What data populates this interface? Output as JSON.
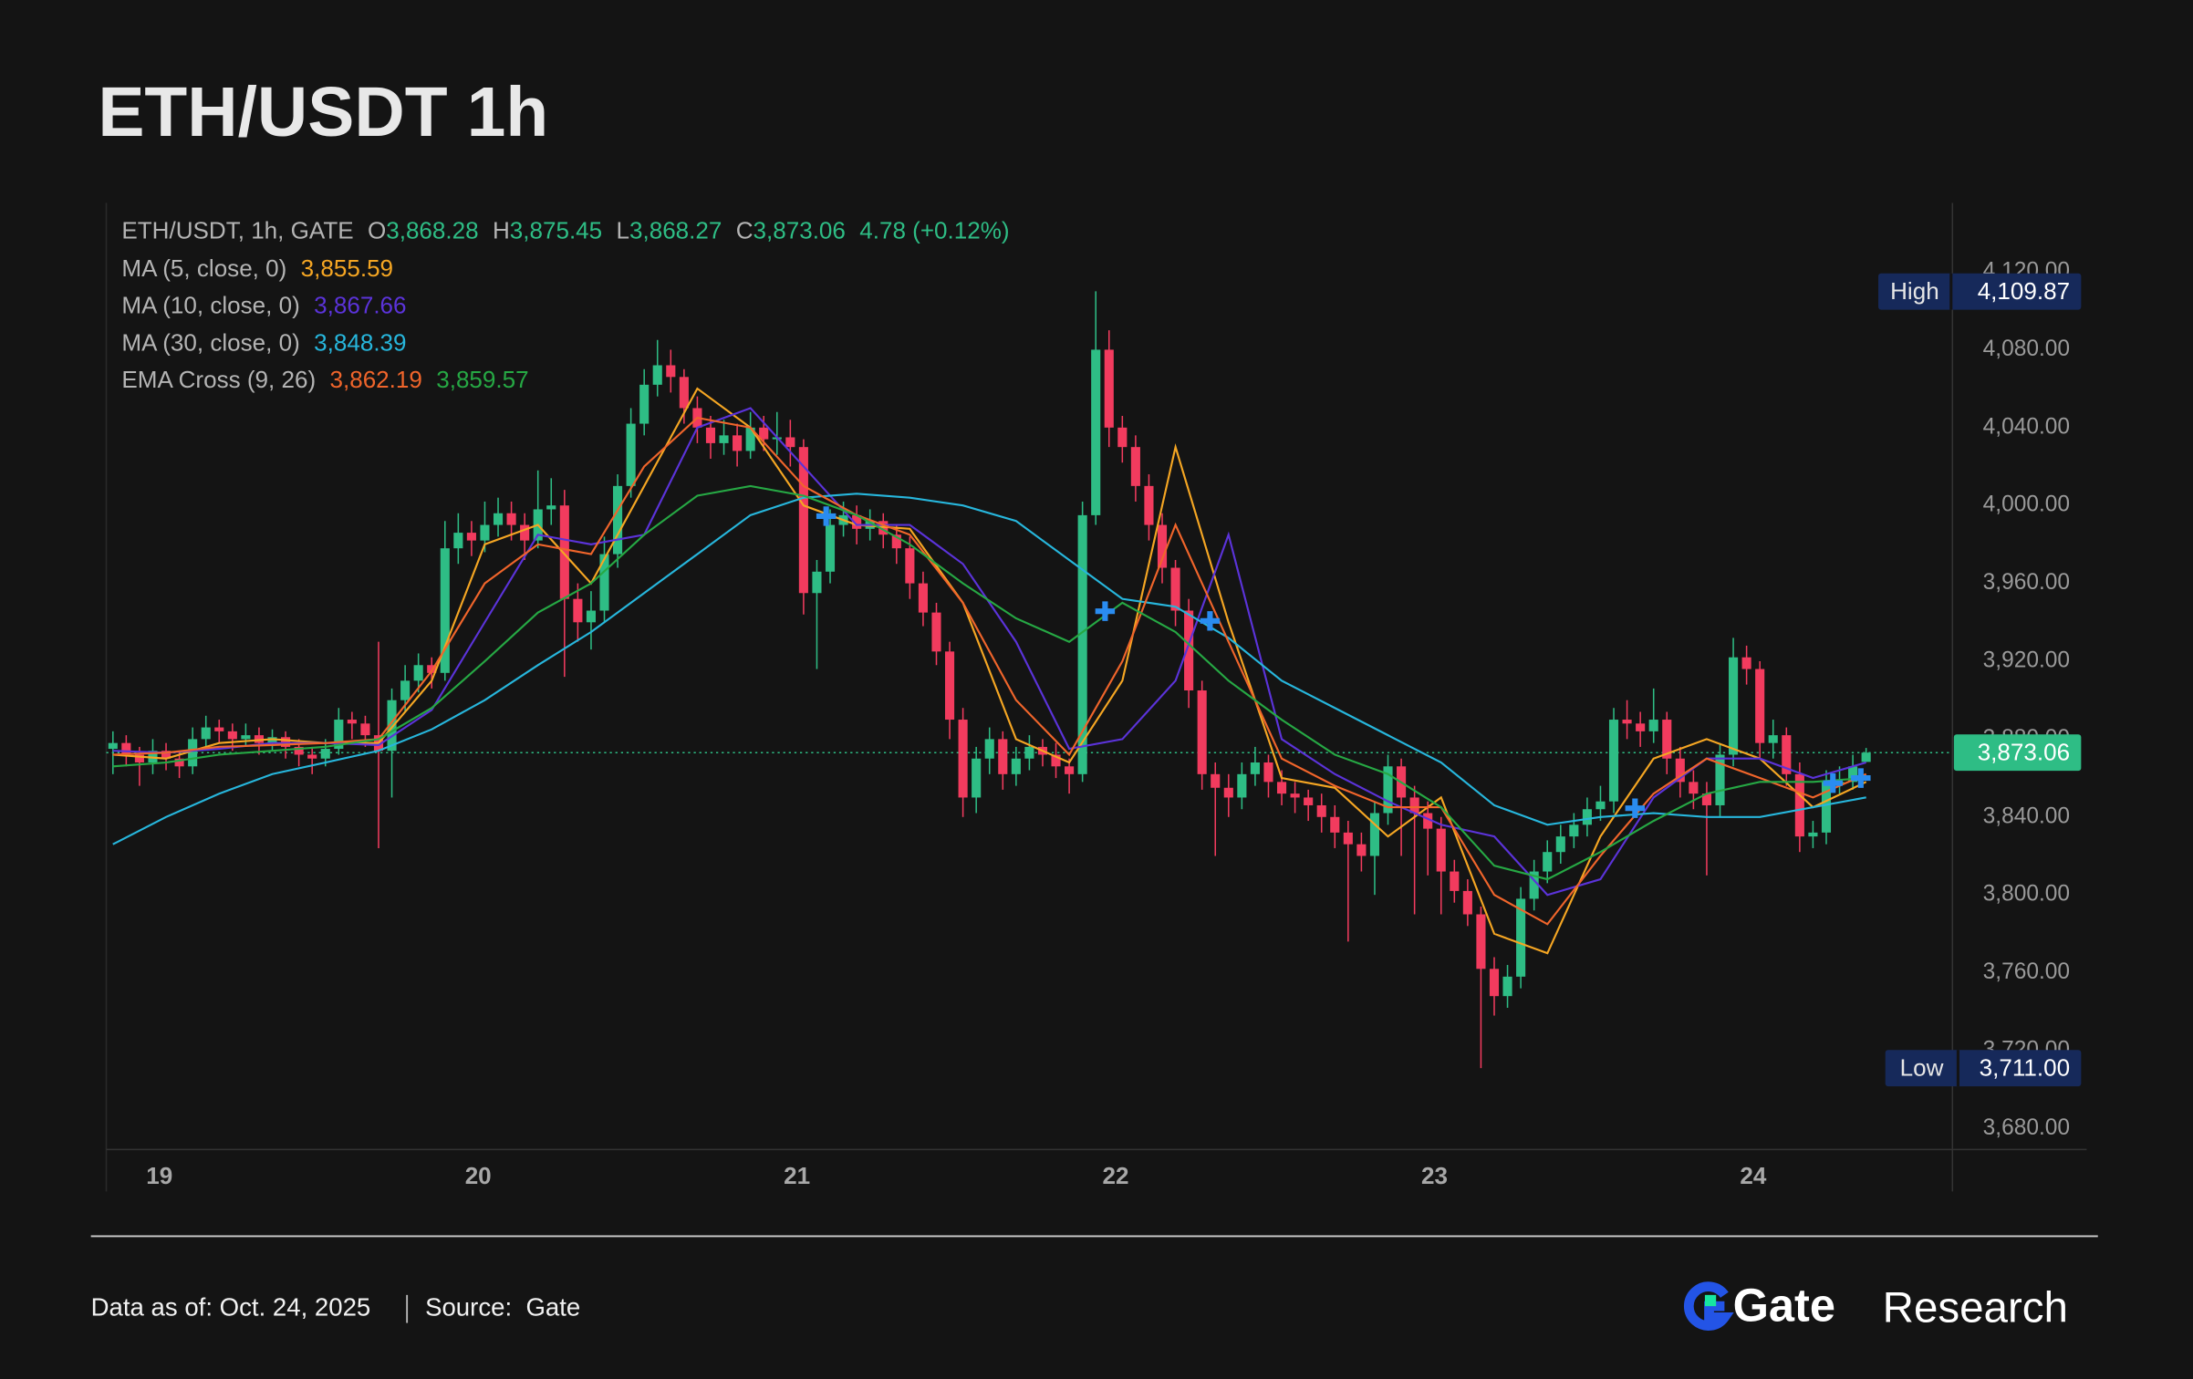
{
  "chart_data": {
    "type": "candlestick",
    "title": "ETH/USDT 1h",
    "up_color": "#2ebd85",
    "down_color": "#f23b5e",
    "xlim": [
      -0.5,
      138.5
    ],
    "xticks": [
      {
        "value": 3.5,
        "label": "19"
      },
      {
        "value": 27.5,
        "label": "20"
      },
      {
        "value": 51.5,
        "label": "21"
      },
      {
        "value": 75.5,
        "label": "22"
      },
      {
        "value": 99.5,
        "label": "23"
      },
      {
        "value": 123.5,
        "label": "24"
      }
    ],
    "ylim": [
      3669.2,
      4155.4
    ],
    "yticks": [
      {
        "value": 3680,
        "label": "3,680.00"
      },
      {
        "value": 3720,
        "label": "3,720.00"
      },
      {
        "value": 3760,
        "label": "3,760.00"
      },
      {
        "value": 3800,
        "label": "3,800.00"
      },
      {
        "value": 3840,
        "label": "3,840.00"
      },
      {
        "value": 3880,
        "label": "3,880.00"
      },
      {
        "value": 3920,
        "label": "3,920.00"
      },
      {
        "value": 3960,
        "label": "3,960.00"
      },
      {
        "value": 4000,
        "label": "4,000.00"
      },
      {
        "value": 4040,
        "label": "4,040.00"
      },
      {
        "value": 4080,
        "label": "4,080.00"
      },
      {
        "value": 4120,
        "label": "4,120.00"
      }
    ],
    "grid": false,
    "ohlc": [
      [
        3875,
        3884,
        3862,
        3878
      ],
      [
        3878,
        3882,
        3866,
        3872
      ],
      [
        3872,
        3876,
        3856,
        3868
      ],
      [
        3868,
        3880,
        3862,
        3874
      ],
      [
        3874,
        3878,
        3864,
        3870
      ],
      [
        3870,
        3874,
        3860,
        3866
      ],
      [
        3866,
        3886,
        3862,
        3880
      ],
      [
        3880,
        3892,
        3876,
        3886
      ],
      [
        3886,
        3890,
        3878,
        3884
      ],
      [
        3884,
        3888,
        3874,
        3880
      ],
      [
        3880,
        3888,
        3876,
        3882
      ],
      [
        3882,
        3886,
        3872,
        3878
      ],
      [
        3878,
        3885,
        3874,
        3881
      ],
      [
        3881,
        3884,
        3870,
        3876
      ],
      [
        3876,
        3880,
        3866,
        3872
      ],
      [
        3872,
        3876,
        3862,
        3870
      ],
      [
        3870,
        3880,
        3866,
        3875
      ],
      [
        3875,
        3896,
        3872,
        3890
      ],
      [
        3890,
        3894,
        3880,
        3888
      ],
      [
        3888,
        3892,
        3876,
        3882
      ],
      [
        3882,
        3930,
        3824,
        3874
      ],
      [
        3874,
        3906,
        3850,
        3900
      ],
      [
        3900,
        3918,
        3894,
        3910
      ],
      [
        3910,
        3924,
        3904,
        3918
      ],
      [
        3918,
        3922,
        3906,
        3914
      ],
      [
        3914,
        3992,
        3910,
        3978
      ],
      [
        3978,
        3996,
        3970,
        3986
      ],
      [
        3986,
        3992,
        3974,
        3982
      ],
      [
        3982,
        4002,
        3976,
        3990
      ],
      [
        3990,
        4004,
        3984,
        3996
      ],
      [
        3996,
        4002,
        3982,
        3990
      ],
      [
        3990,
        3996,
        3972,
        3982
      ],
      [
        3982,
        4018,
        3978,
        3998
      ],
      [
        3998,
        4014,
        3990,
        4000
      ],
      [
        4000,
        4008,
        3912,
        3952
      ],
      [
        3952,
        3960,
        3930,
        3940
      ],
      [
        3940,
        3956,
        3926,
        3946
      ],
      [
        3946,
        3984,
        3940,
        3975
      ],
      [
        3975,
        4016,
        3968,
        4010
      ],
      [
        4010,
        4050,
        4004,
        4042
      ],
      [
        4042,
        4070,
        4036,
        4062
      ],
      [
        4062,
        4085,
        4056,
        4072
      ],
      [
        4072,
        4080,
        4058,
        4066
      ],
      [
        4066,
        4070,
        4042,
        4050
      ],
      [
        4050,
        4056,
        4032,
        4040
      ],
      [
        4040,
        4046,
        4024,
        4032
      ],
      [
        4032,
        4044,
        4026,
        4036
      ],
      [
        4036,
        4042,
        4020,
        4028
      ],
      [
        4028,
        4048,
        4024,
        4040
      ],
      [
        4040,
        4046,
        4028,
        4034
      ],
      [
        4034,
        4048,
        4026,
        4035
      ],
      [
        4035,
        4044,
        4020,
        4030
      ],
      [
        4030,
        4034,
        3944,
        3955
      ],
      [
        3955,
        3972,
        3916,
        3966
      ],
      [
        3966,
        3998,
        3960,
        3990
      ],
      [
        3990,
        4002,
        3984,
        3995
      ],
      [
        3995,
        4000,
        3980,
        3988
      ],
      [
        3988,
        3998,
        3982,
        3992
      ],
      [
        3992,
        3996,
        3978,
        3985
      ],
      [
        3985,
        3990,
        3970,
        3978
      ],
      [
        3978,
        3984,
        3952,
        3960
      ],
      [
        3960,
        3966,
        3938,
        3945
      ],
      [
        3945,
        3950,
        3918,
        3925
      ],
      [
        3925,
        3930,
        3880,
        3890
      ],
      [
        3890,
        3896,
        3840,
        3850
      ],
      [
        3850,
        3876,
        3842,
        3870
      ],
      [
        3870,
        3886,
        3862,
        3880
      ],
      [
        3880,
        3884,
        3854,
        3862
      ],
      [
        3862,
        3876,
        3856,
        3870
      ],
      [
        3870,
        3882,
        3864,
        3876
      ],
      [
        3876,
        3880,
        3866,
        3872
      ],
      [
        3872,
        3878,
        3860,
        3866
      ],
      [
        3866,
        3870,
        3852,
        3862
      ],
      [
        3862,
        4002,
        3858,
        3995
      ],
      [
        3995,
        4110,
        3990,
        4080
      ],
      [
        4080,
        4090,
        4030,
        4040
      ],
      [
        4040,
        4046,
        4022,
        4030
      ],
      [
        4030,
        4036,
        4002,
        4010
      ],
      [
        4010,
        4016,
        3982,
        3990
      ],
      [
        3990,
        3996,
        3960,
        3968
      ],
      [
        3968,
        3972,
        3938,
        3946
      ],
      [
        3946,
        3952,
        3896,
        3905
      ],
      [
        3905,
        3910,
        3854,
        3862
      ],
      [
        3862,
        3868,
        3820,
        3855
      ],
      [
        3855,
        3862,
        3840,
        3850
      ],
      [
        3850,
        3868,
        3844,
        3862
      ],
      [
        3862,
        3876,
        3856,
        3868
      ],
      [
        3868,
        3872,
        3850,
        3858
      ],
      [
        3858,
        3864,
        3846,
        3852
      ],
      [
        3852,
        3858,
        3842,
        3850
      ],
      [
        3850,
        3854,
        3838,
        3846
      ],
      [
        3846,
        3852,
        3832,
        3840
      ],
      [
        3840,
        3846,
        3824,
        3832
      ],
      [
        3832,
        3838,
        3776,
        3826
      ],
      [
        3826,
        3832,
        3812,
        3820
      ],
      [
        3820,
        3848,
        3800,
        3842
      ],
      [
        3842,
        3872,
        3836,
        3866
      ],
      [
        3866,
        3870,
        3820,
        3850
      ],
      [
        3850,
        3856,
        3790,
        3842
      ],
      [
        3842,
        3848,
        3810,
        3834
      ],
      [
        3834,
        3840,
        3790,
        3812
      ],
      [
        3812,
        3818,
        3796,
        3802
      ],
      [
        3802,
        3808,
        3784,
        3790
      ],
      [
        3790,
        3794,
        3711,
        3762
      ],
      [
        3762,
        3768,
        3738,
        3748
      ],
      [
        3748,
        3764,
        3742,
        3758
      ],
      [
        3758,
        3804,
        3752,
        3798
      ],
      [
        3798,
        3818,
        3792,
        3812
      ],
      [
        3812,
        3828,
        3806,
        3822
      ],
      [
        3822,
        3836,
        3816,
        3830
      ],
      [
        3830,
        3842,
        3824,
        3836
      ],
      [
        3836,
        3850,
        3830,
        3844
      ],
      [
        3844,
        3856,
        3838,
        3848
      ],
      [
        3848,
        3896,
        3842,
        3890
      ],
      [
        3890,
        3900,
        3880,
        3888
      ],
      [
        3888,
        3894,
        3876,
        3884
      ],
      [
        3884,
        3906,
        3878,
        3890
      ],
      [
        3890,
        3894,
        3862,
        3870
      ],
      [
        3870,
        3876,
        3850,
        3858
      ],
      [
        3858,
        3864,
        3844,
        3852
      ],
      [
        3852,
        3858,
        3810,
        3846
      ],
      [
        3846,
        3878,
        3840,
        3872
      ],
      [
        3872,
        3932,
        3866,
        3922
      ],
      [
        3922,
        3928,
        3908,
        3916
      ],
      [
        3916,
        3920,
        3870,
        3878
      ],
      [
        3878,
        3890,
        3870,
        3882
      ],
      [
        3882,
        3886,
        3856,
        3862
      ],
      [
        3862,
        3868,
        3822,
        3830
      ],
      [
        3830,
        3838,
        3824,
        3832
      ],
      [
        3832,
        3864,
        3826,
        3858
      ],
      [
        3858,
        3866,
        3852,
        3858
      ],
      [
        3858,
        3872,
        3854,
        3866
      ],
      [
        3868.28,
        3875.45,
        3868.27,
        3873.06
      ]
    ],
    "line_x": [
      0,
      4,
      8,
      12,
      16,
      20,
      24,
      28,
      32,
      36,
      40,
      44,
      48,
      52,
      56,
      60,
      64,
      68,
      72,
      76,
      80,
      84,
      88,
      92,
      96,
      100,
      104,
      108,
      112,
      116,
      120,
      124,
      128,
      132
    ],
    "legend": {
      "symbol": "ETH/USDT, 1h, GATE",
      "ohlc": [
        {
          "key": "O",
          "value": "3,868.28"
        },
        {
          "key": "H",
          "value": "3,875.45"
        },
        {
          "key": "L",
          "value": "3,868.27"
        },
        {
          "key": "C",
          "value": "3,873.06"
        }
      ],
      "change": "4.78 (+0.12%)",
      "color": "#2ebd85"
    },
    "indicators": [
      {
        "label": "MA (5, close, 0)",
        "lines": [
          {
            "value": "3,855.59",
            "color": "#f5a623",
            "points": [
              3872,
              3870,
              3878,
              3880,
              3878,
              3878,
              3910,
              3980,
              3990,
              3960,
              4010,
              4060,
              4040,
              4000,
              3990,
              3988,
              3950,
              3880,
              3868,
              3910,
              4030,
              3940,
              3860,
              3855,
              3830,
              3850,
              3780,
              3770,
              3830,
              3870,
              3880,
              3870,
              3845,
              3858
            ]
          }
        ]
      },
      {
        "label": "MA (10, close, 0)",
        "lines": [
          {
            "value": "3,867.66",
            "color": "#5b33d9",
            "points": [
              3874,
              3873,
              3875,
              3878,
              3878,
              3877,
              3895,
              3940,
              3985,
              3980,
              3985,
              4040,
              4050,
              4020,
              3990,
              3990,
              3970,
              3930,
              3875,
              3880,
              3910,
              3985,
              3880,
              3862,
              3848,
              3836,
              3830,
              3800,
              3808,
              3850,
              3870,
              3870,
              3860,
              3868
            ]
          }
        ]
      },
      {
        "label": "MA (30, close, 0)",
        "lines": [
          {
            "value": "3,848.39",
            "color": "#27b6dc",
            "points": [
              3826,
              3840,
              3852,
              3862,
              3868,
              3874,
              3885,
              3900,
              3918,
              3935,
              3955,
              3975,
              3995,
              4004,
              4006,
              4004,
              4000,
              3992,
              3972,
              3952,
              3948,
              3932,
              3910,
              3896,
              3882,
              3868,
              3846,
              3836,
              3840,
              3842,
              3840,
              3840,
              3845,
              3850
            ]
          }
        ]
      },
      {
        "label": "EMA Cross (9, 26)",
        "lines": [
          {
            "value": "3,862.19",
            "color": "#f0652b",
            "points": [
              3872,
              3873,
              3876,
              3877,
              3878,
              3880,
              3915,
              3960,
              3980,
              3975,
              4020,
              4045,
              4040,
              4010,
              3995,
              3985,
              3950,
              3900,
              3872,
              3920,
              3990,
              3930,
              3870,
              3856,
              3845,
              3845,
              3800,
              3785,
              3820,
              3852,
              3870,
              3860,
              3850,
              3862
            ]
          },
          {
            "value": "3,859.57",
            "color": "#26a844",
            "points": [
              3866,
              3868,
              3872,
              3874,
              3876,
              3880,
              3896,
              3920,
              3945,
              3960,
              3985,
              4005,
              4010,
              4005,
              3995,
              3980,
              3960,
              3942,
              3930,
              3950,
              3935,
              3910,
              3890,
              3872,
              3862,
              3845,
              3815,
              3808,
              3822,
              3838,
              3852,
              3858,
              3858,
              3860
            ]
          }
        ]
      }
    ],
    "signals": {
      "color": "#2a8cf0",
      "x": [
        53.7,
        74.7,
        82.6,
        114.6,
        129.5,
        131.6
      ],
      "y": [
        3994.5,
        3945.7,
        3940.7,
        3844.5,
        3857.4,
        3860
      ]
    },
    "high": {
      "text": "High",
      "value": 4109.87,
      "label": "4,109.87"
    },
    "low": {
      "text": "Low",
      "value": 3711.0,
      "label": "3,711.00"
    },
    "last_price": {
      "value": 3873.06,
      "label": "3,873.06"
    }
  },
  "footer": {
    "date": "Data as of: Oct. 24, 2025",
    "source": "Source:  Gate",
    "brand": "Gate",
    "brand_sub": "Research"
  }
}
